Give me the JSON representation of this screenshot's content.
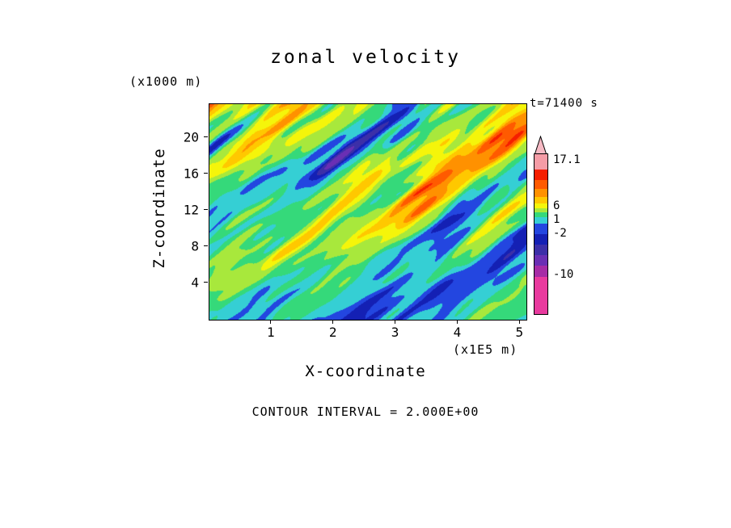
{
  "title": "zonal velocity",
  "time_label": "t=71400 s",
  "y_axis": {
    "label": "Z-coordinate",
    "unit": "(x1000 m)",
    "ticks": [
      4,
      8,
      12,
      16,
      20
    ],
    "range": [
      0,
      23.7
    ]
  },
  "x_axis": {
    "label": "X-coordinate",
    "unit": "(x1E5 m)",
    "ticks": [
      1,
      2,
      3,
      4,
      5
    ],
    "range": [
      0,
      5.1
    ]
  },
  "footer": "CONTOUR INTERVAL = 2.000E+00",
  "colorbar": {
    "tick_labels": [
      {
        "text": "17.1",
        "y": 30
      },
      {
        "text": "6",
        "y": 87
      },
      {
        "text": "1",
        "y": 104
      },
      {
        "text": "-2",
        "y": 121
      },
      {
        "text": "-10",
        "y": 172
      }
    ],
    "arrow_color": "#f6bac4",
    "segments_top_to_bottom": [
      {
        "color": "#f59ca6",
        "h": 19
      },
      {
        "color": "#f51e00",
        "h": 13
      },
      {
        "color": "#ff5a00",
        "h": 11
      },
      {
        "color": "#ff9100",
        "h": 10
      },
      {
        "color": "#ffc800",
        "h": 8
      },
      {
        "color": "#f5f50a",
        "h": 6
      },
      {
        "color": "#a8e83c",
        "h": 5
      },
      {
        "color": "#35d97a",
        "h": 6
      },
      {
        "color": "#35cfd4",
        "h": 8
      },
      {
        "color": "#2346e0",
        "h": 13
      },
      {
        "color": "#1420b4",
        "h": 13
      },
      {
        "color": "#3c2fa8",
        "h": 13
      },
      {
        "color": "#6a2fb4",
        "h": 13
      },
      {
        "color": "#a62ca6",
        "h": 14
      },
      {
        "color": "#e83a9e",
        "h": 46
      }
    ]
  },
  "chart_data": {
    "type": "heatmap",
    "subtype": "filled-contour",
    "title": "zonal velocity",
    "xlabel": "X-coordinate",
    "x_units": "(x1E5 m)",
    "ylabel": "Z-coordinate",
    "y_units": "(x1000 m)",
    "x_ticks": [
      1,
      2,
      3,
      4,
      5
    ],
    "y_ticks": [
      4,
      8,
      12,
      16,
      20
    ],
    "x_range": [
      0,
      5.1
    ],
    "y_range": [
      0,
      23.7
    ],
    "time_stamp": "t=71400 s",
    "contour_interval": 2.0,
    "colorbar_tick_values": [
      17.1,
      6,
      1,
      -2,
      -10
    ],
    "levels": [
      -10,
      -8,
      -6,
      -4,
      -2,
      0,
      2,
      4,
      6,
      8,
      10,
      12,
      14,
      16
    ],
    "palette_low_to_high": [
      "#e83a9e",
      "#a62ca6",
      "#6a2fb4",
      "#3c2fa8",
      "#1420b4",
      "#2346e0",
      "#35cfd4",
      "#35d97a",
      "#a8e83c",
      "#f5f50a",
      "#ffc800",
      "#ff9100",
      "#ff5a00",
      "#f51e00",
      "#f59ca6"
    ],
    "legend_position": "right",
    "grid": false
  }
}
